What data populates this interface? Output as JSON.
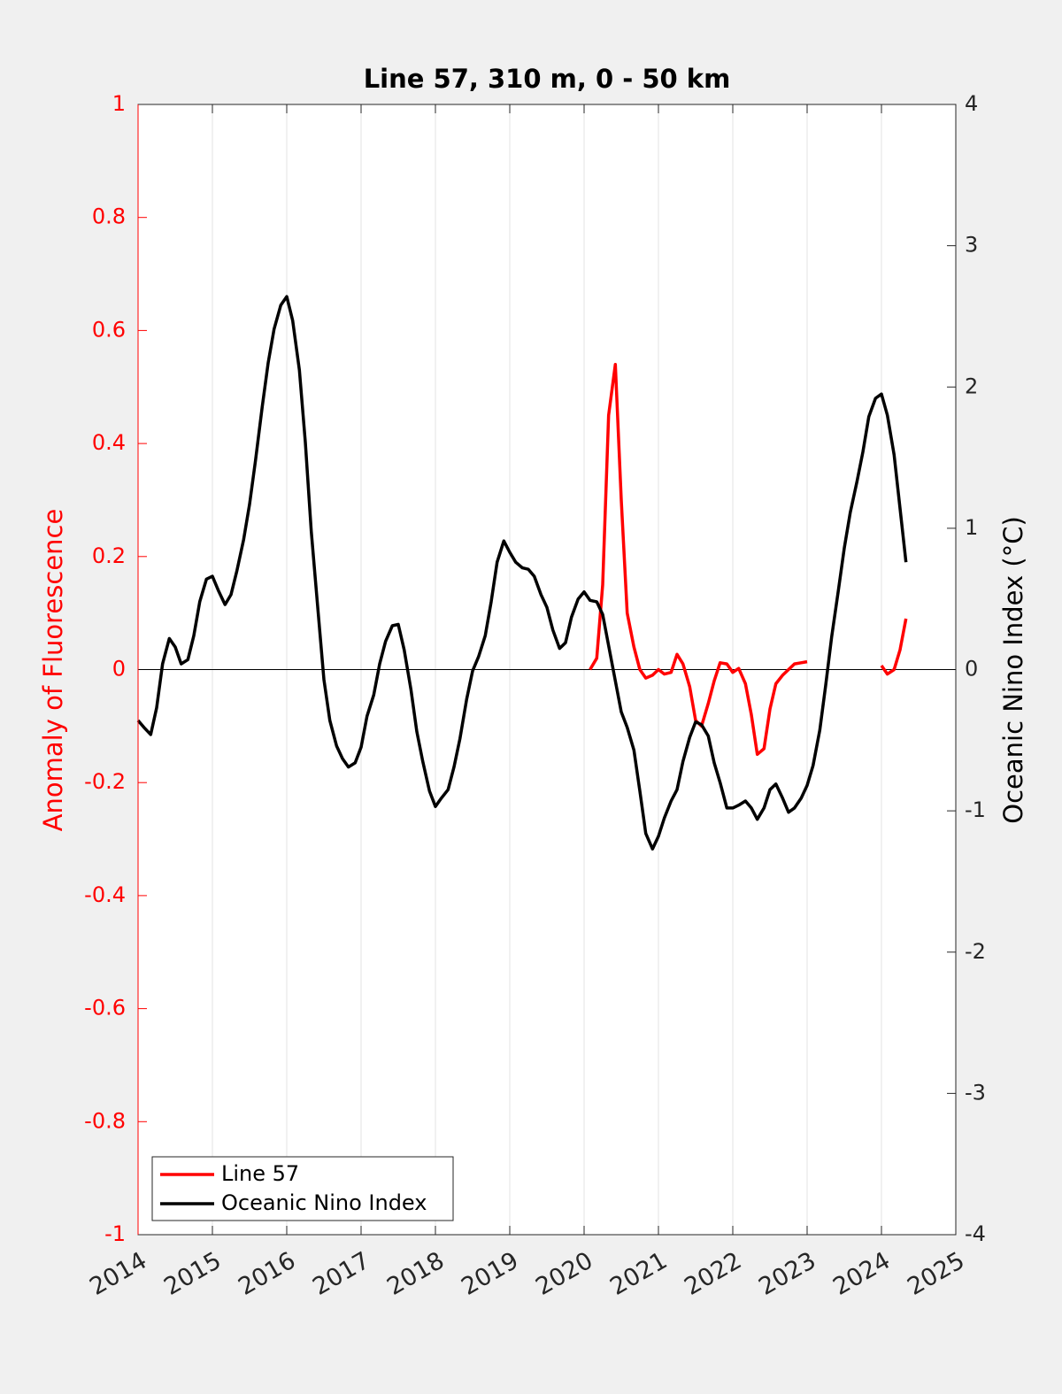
{
  "chart_data": {
    "type": "line",
    "title": "Line 57, 310 m, 0 - 50 km",
    "ylabel": "Anomaly of Fluorescence",
    "y2label": "Oceanic Nino Index (°C)",
    "xlim": [
      2014,
      2025
    ],
    "xticks": [
      2014,
      2015,
      2016,
      2017,
      2018,
      2019,
      2020,
      2021,
      2022,
      2023,
      2024,
      2025
    ],
    "ylim": [
      -1,
      1
    ],
    "yticks": [
      1,
      0.8,
      0.6,
      0.4,
      0.2,
      0,
      -0.2,
      -0.4,
      -0.6,
      -0.8,
      -1
    ],
    "y2lim": [
      -4,
      4
    ],
    "y2ticks": [
      4,
      3,
      2,
      1,
      0,
      -1,
      -2,
      -3,
      -4
    ],
    "ycolor": "#ff0000",
    "xgrid": true,
    "legend": "lower left",
    "series": [
      {
        "name": "Line 57",
        "color": "#ff0000",
        "x": [
          2020.08,
          2020.17,
          2020.25,
          2020.33,
          2020.42,
          2020.5,
          2020.58,
          2020.67,
          2020.75,
          2020.83,
          2020.92,
          2021,
          2021.08,
          2021.17,
          2021.25,
          2021.33,
          2021.42,
          2021.5,
          2021.58,
          2021.67,
          2021.75,
          2021.83,
          2021.92,
          2022,
          2022.08,
          2022.17,
          2022.25,
          2022.33,
          2022.42,
          2022.5,
          2022.58,
          2022.67,
          2022.75,
          2022.83,
          2022.92,
          2023,
          2023.5,
          2024,
          2024.08,
          2024.17,
          2024.25,
          2024.33
        ],
        "values": [
          0,
          0.02,
          0.15,
          0.45,
          0.54,
          0.3,
          0.1,
          0.04,
          0,
          -0.015,
          -0.01,
          0,
          -0.008,
          -0.005,
          0.027,
          0.01,
          -0.03,
          -0.09,
          -0.1,
          -0.06,
          -0.02,
          0.012,
          0.01,
          -0.005,
          0.002,
          -0.025,
          -0.08,
          -0.15,
          -0.14,
          -0.07,
          -0.025,
          -0.01,
          0,
          0.01,
          0.012,
          0.014,
          null,
          0.007,
          -0.008,
          0,
          0.035,
          0.09
        ]
      },
      {
        "name": "Oceanic Nino Index",
        "color": "#000000",
        "axis": "y2",
        "x": [
          2014,
          2014.08,
          2014.17,
          2014.25,
          2014.33,
          2014.42,
          2014.5,
          2014.58,
          2014.67,
          2014.75,
          2014.83,
          2014.92,
          2015,
          2015.08,
          2015.17,
          2015.25,
          2015.33,
          2015.42,
          2015.5,
          2015.58,
          2015.67,
          2015.75,
          2015.83,
          2015.92,
          2016,
          2016.08,
          2016.17,
          2016.25,
          2016.33,
          2016.42,
          2016.5,
          2016.58,
          2016.67,
          2016.75,
          2016.83,
          2016.92,
          2017,
          2017.08,
          2017.17,
          2017.25,
          2017.33,
          2017.42,
          2017.5,
          2017.58,
          2017.67,
          2017.75,
          2017.83,
          2017.92,
          2018,
          2018.08,
          2018.17,
          2018.25,
          2018.33,
          2018.42,
          2018.5,
          2018.58,
          2018.67,
          2018.75,
          2018.83,
          2018.92,
          2019,
          2019.08,
          2019.17,
          2019.25,
          2019.33,
          2019.42,
          2019.5,
          2019.58,
          2019.67,
          2019.75,
          2019.83,
          2019.92,
          2020,
          2020.08,
          2020.17,
          2020.25,
          2020.33,
          2020.42,
          2020.5,
          2020.58,
          2020.67,
          2020.75,
          2020.83,
          2020.92,
          2021,
          2021.08,
          2021.17,
          2021.25,
          2021.33,
          2021.42,
          2021.5,
          2021.58,
          2021.67,
          2021.75,
          2021.83,
          2021.92,
          2022,
          2022.08,
          2022.17,
          2022.25,
          2022.33,
          2022.42,
          2022.5,
          2022.58,
          2022.67,
          2022.75,
          2022.83,
          2022.92,
          2023,
          2023.08,
          2023.17,
          2023.25,
          2023.33,
          2023.42,
          2023.5,
          2023.58,
          2023.67,
          2023.75,
          2023.83,
          2023.92,
          2024,
          2024.08,
          2024.17,
          2024.25,
          2024.33
        ],
        "values": [
          -0.36,
          -0.41,
          -0.46,
          -0.27,
          0.04,
          0.22,
          0.16,
          0.04,
          0.07,
          0.24,
          0.48,
          0.64,
          0.66,
          0.56,
          0.46,
          0.53,
          0.7,
          0.92,
          1.17,
          1.48,
          1.86,
          2.17,
          2.41,
          2.58,
          2.64,
          2.47,
          2.12,
          1.61,
          0.98,
          0.42,
          -0.07,
          -0.36,
          -0.54,
          -0.63,
          -0.69,
          -0.66,
          -0.55,
          -0.33,
          -0.18,
          0.04,
          0.2,
          0.31,
          0.32,
          0.14,
          -0.14,
          -0.44,
          -0.65,
          -0.86,
          -0.97,
          -0.91,
          -0.85,
          -0.69,
          -0.49,
          -0.21,
          -0.01,
          0.09,
          0.24,
          0.48,
          0.76,
          0.91,
          0.83,
          0.76,
          0.72,
          0.71,
          0.66,
          0.53,
          0.44,
          0.28,
          0.15,
          0.19,
          0.37,
          0.5,
          0.55,
          0.49,
          0.48,
          0.39,
          0.17,
          -0.08,
          -0.3,
          -0.41,
          -0.57,
          -0.86,
          -1.16,
          -1.27,
          -1.18,
          -1.05,
          -0.93,
          -0.85,
          -0.65,
          -0.48,
          -0.37,
          -0.39,
          -0.47,
          -0.66,
          -0.8,
          -0.98,
          -0.98,
          -0.96,
          -0.93,
          -0.98,
          -1.06,
          -0.98,
          -0.85,
          -0.81,
          -0.91,
          -1.01,
          -0.98,
          -0.91,
          -0.82,
          -0.68,
          -0.43,
          -0.11,
          0.23,
          0.56,
          0.86,
          1.11,
          1.33,
          1.54,
          1.79,
          1.92,
          1.95,
          1.8,
          1.52,
          1.14,
          0.76
        ]
      }
    ]
  }
}
